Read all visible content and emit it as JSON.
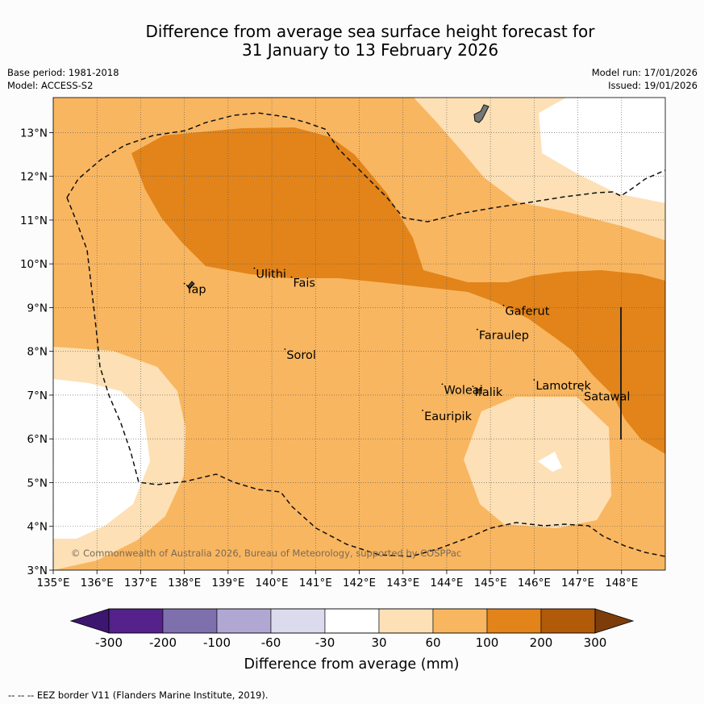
{
  "title": {
    "line1": "Difference from average sea surface height forecast for",
    "line2": "31 January to 13 February 2026"
  },
  "info": {
    "base_period": "Base period: 1981-2018",
    "model": "Model: ACCESS-S2",
    "model_run": "Model run: 17/01/2026",
    "issued": "Issued: 19/01/2026"
  },
  "axes": {
    "lon_ticks": [
      "135°E",
      "136°E",
      "137°E",
      "138°E",
      "139°E",
      "140°E",
      "141°E",
      "142°E",
      "143°E",
      "144°E",
      "145°E",
      "146°E",
      "147°E",
      "148°E"
    ],
    "lat_ticks": [
      "3°N",
      "4°N",
      "5°N",
      "6°N",
      "7°N",
      "8°N",
      "9°N",
      "10°N",
      "11°N",
      "12°N",
      "13°N"
    ],
    "lon_range": [
      135,
      149
    ],
    "lat_range": [
      3,
      13.8
    ]
  },
  "places": [
    {
      "name": "Yap",
      "lon": 138.0,
      "lat": 9.55
    },
    {
      "name": "Ulithi",
      "lon": 139.6,
      "lat": 9.9
    },
    {
      "name": "Fais",
      "lon": 140.45,
      "lat": 9.7
    },
    {
      "name": "Sorol",
      "lon": 140.3,
      "lat": 8.05
    },
    {
      "name": "Gaferut",
      "lon": 145.3,
      "lat": 9.05
    },
    {
      "name": "Faraulep",
      "lon": 144.7,
      "lat": 8.5
    },
    {
      "name": "Woleai",
      "lon": 143.9,
      "lat": 7.25
    },
    {
      "name": "Ifalik",
      "lon": 144.6,
      "lat": 7.2
    },
    {
      "name": "Lamotrek",
      "lon": 146.0,
      "lat": 7.35
    },
    {
      "name": "Satawal",
      "lon": 147.1,
      "lat": 7.1
    },
    {
      "name": "Eauripik",
      "lon": 143.45,
      "lat": 6.65
    }
  ],
  "copyright": "© Commonwealth of Australia 2026, Bureau of Meteorology, supported by COSPPac",
  "colorbar": {
    "title": "Difference from average (mm)",
    "labels": [
      "-300",
      "-200",
      "-100",
      "-60",
      "-30",
      "30",
      "60",
      "100",
      "200",
      "300"
    ],
    "colors": [
      "#3d1670",
      "#54228a",
      "#7e70ad",
      "#b0a8d2",
      "#dcdbee",
      "#ffffff",
      "#fde0b5",
      "#f9b660",
      "#e2841a",
      "#b15a0a",
      "#7d3d0a"
    ]
  },
  "eez_credit": "--  --  -- EEZ border V11 (Flanders Marine Institute, 2019)."
}
